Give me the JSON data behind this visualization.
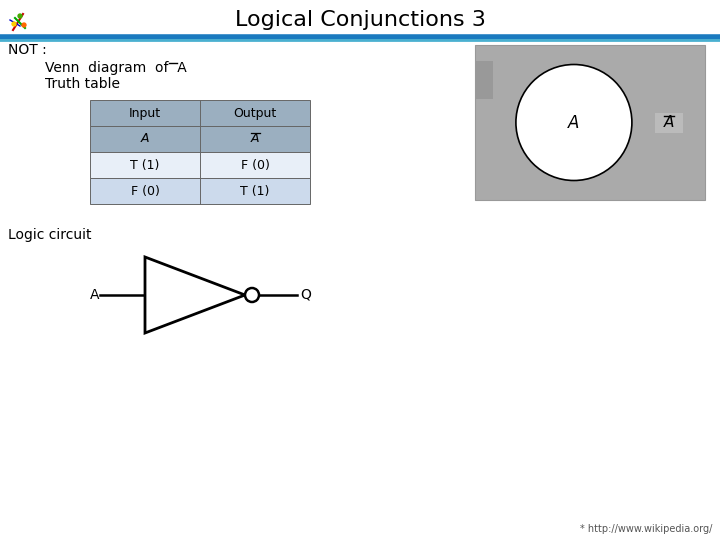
{
  "title": "Logical Conjunctions 3",
  "title_fontsize": 16,
  "bg_color": "#ffffff",
  "header_line_color1": "#1a7abf",
  "header_line_color2": "#4ab0d0",
  "not_label": "NOT :",
  "truth_table_label": "Truth table",
  "table_header_bg": "#9bafc0",
  "table_subheader_bg": "#9bafc0",
  "table_row1_bg": "#e8eff8",
  "table_row2_bg": "#ccdaec",
  "table_border_color": "#666666",
  "venn_bg": "#aaaaaa",
  "venn_circle_color": "#ffffff",
  "venn_border_color": "#000000",
  "logic_circuit_label": "Logic circuit",
  "footer": "* http://www.wikipedia.org/",
  "font_size_main": 10,
  "font_size_table": 9
}
